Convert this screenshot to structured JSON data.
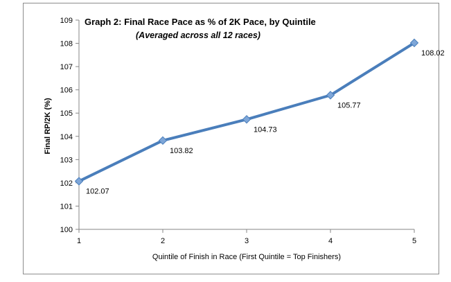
{
  "chart_data": {
    "type": "line",
    "title": "Graph 2: Final Race Pace as % of 2K Pace, by Quintile",
    "subtitle": "(Averaged across all 12 races)",
    "xlabel": "Quintile of Finish in Race (First Quintile = Top Finishers)",
    "ylabel": "Final RP/2K (%)",
    "x": [
      1,
      2,
      3,
      4,
      5
    ],
    "values": [
      102.07,
      103.82,
      104.73,
      105.77,
      108.02
    ],
    "data_labels": [
      "102.07",
      "103.82",
      "104.73",
      "105.77",
      "108.02"
    ],
    "xlim": [
      1,
      5
    ],
    "ylim": [
      100,
      109
    ],
    "yticks": [
      100,
      101,
      102,
      103,
      104,
      105,
      106,
      107,
      108,
      109
    ],
    "grid": false,
    "legend": "none",
    "colors": {
      "line": "#4a7ebb",
      "marker_fill": "#7ea6d8",
      "marker_stroke": "#4a7ebb",
      "axis": "#868686"
    }
  }
}
